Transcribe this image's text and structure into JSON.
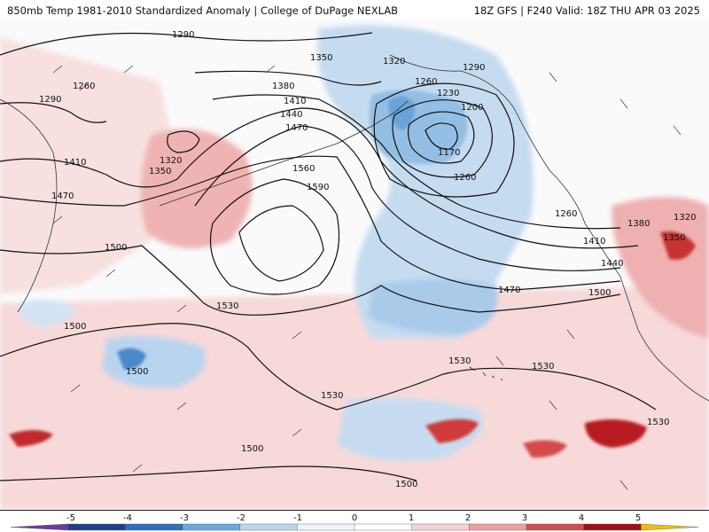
{
  "header": {
    "left_title": "850mb Temp 1981-2010 Standardized Anomaly | College of DuPage NEXLAB",
    "right_title": "18Z GFS | F240 Valid: 18Z THU APR 03 2025"
  },
  "map": {
    "low_center_label": "1170",
    "contour_labels": [
      "1290",
      "1350",
      "1320",
      "1290",
      "1260",
      "1230",
      "1200",
      "1260",
      "1380",
      "1410",
      "1440",
      "1470",
      "1560",
      "1590",
      "1260",
      "1290",
      "1320",
      "1350",
      "1410",
      "1470",
      "1500",
      "1530",
      "1500",
      "1500",
      "1530",
      "1500",
      "1530",
      "1530",
      "1530",
      "1500",
      "1260",
      "1380",
      "1320",
      "1350",
      "1410",
      "1440",
      "1500",
      "1470"
    ]
  },
  "colorbar": {
    "ticks": [
      "-5",
      "-4",
      "-3",
      "-2",
      "-1",
      "0",
      "1",
      "2",
      "3",
      "4",
      "5"
    ],
    "colors": [
      "#6a3d9a",
      "#1f3f8f",
      "#2f6fbf",
      "#6aa8dc",
      "#b9d6ee",
      "#eef3fa",
      "#ffffff",
      "#f6d3d3",
      "#eba0a0",
      "#d44e4e",
      "#a30f15",
      "#f0c000"
    ]
  }
}
